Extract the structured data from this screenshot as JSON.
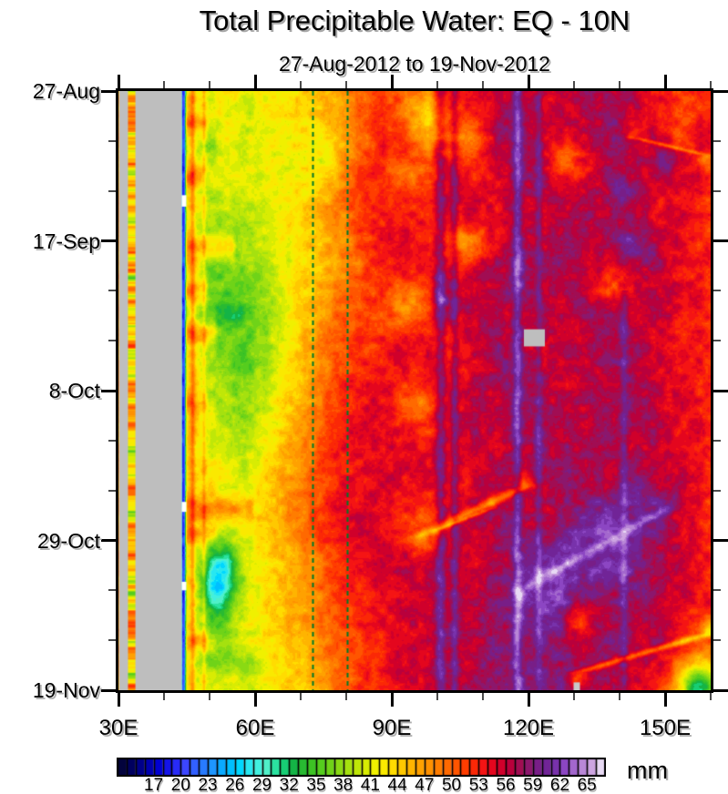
{
  "title": "Total Precipitable Water: EQ - 10N",
  "subtitle": "27-Aug-2012 to 19-Nov-2012",
  "colorbar": {
    "unit": "mm"
  },
  "chart_data": {
    "type": "heatmap",
    "title": "Total Precipitable Water: EQ - 10N",
    "subtitle": "27-Aug-2012 to 19-Nov-2012",
    "units": "mm",
    "x_axis": {
      "range_deg_east": [
        30,
        160
      ],
      "major_ticks": [
        {
          "lon": 30,
          "label": "30E"
        },
        {
          "lon": 60,
          "label": "60E"
        },
        {
          "lon": 90,
          "label": "90E"
        },
        {
          "lon": 120,
          "label": "120E"
        },
        {
          "lon": 150,
          "label": "150E"
        }
      ],
      "minor_tick_lons": [
        40,
        50,
        70,
        80,
        100,
        110,
        130,
        140,
        160
      ]
    },
    "y_axis": {
      "range_days": [
        0,
        84
      ],
      "major_ticks": [
        {
          "day": 0,
          "label": "27-Aug"
        },
        {
          "day": 21,
          "label": "17-Sep"
        },
        {
          "day": 42,
          "label": "8-Oct"
        },
        {
          "day": 63,
          "label": "29-Oct"
        },
        {
          "day": 84,
          "label": "19-Nov"
        }
      ],
      "minor_tick_days": [
        7,
        14,
        28,
        35,
        49,
        56,
        70,
        77
      ]
    },
    "colorbar": {
      "unit": "mm",
      "min": 13,
      "max": 67,
      "cell_step": 1,
      "labels": [
        17,
        20,
        23,
        26,
        29,
        32,
        35,
        38,
        41,
        44,
        47,
        50,
        53,
        56,
        59,
        62,
        65
      ]
    },
    "palette_stops": [
      [
        13,
        "#05052D"
      ],
      [
        14.5,
        "#00005F"
      ],
      [
        16,
        "#0000A0"
      ],
      [
        17.5,
        "#0000D2"
      ],
      [
        19,
        "#1E1EF5"
      ],
      [
        20.5,
        "#3C46FF"
      ],
      [
        22,
        "#2D6EFF"
      ],
      [
        23.5,
        "#1E96FF"
      ],
      [
        25,
        "#00B4FF"
      ],
      [
        26.5,
        "#00D7FF"
      ],
      [
        28,
        "#3CF0EB"
      ],
      [
        29.5,
        "#50F0C8"
      ],
      [
        31,
        "#19DC8C"
      ],
      [
        32.5,
        "#14B446"
      ],
      [
        34,
        "#32BE28"
      ],
      [
        35.5,
        "#55CD1E"
      ],
      [
        37,
        "#7DD716"
      ],
      [
        38.5,
        "#A5E10F"
      ],
      [
        40,
        "#CDEB05"
      ],
      [
        41.5,
        "#F0F000"
      ],
      [
        43,
        "#FFE600"
      ],
      [
        44.5,
        "#FFC800"
      ],
      [
        46,
        "#FFAA00"
      ],
      [
        47.5,
        "#FF9100"
      ],
      [
        49,
        "#FF7300"
      ],
      [
        50.5,
        "#FF5500"
      ],
      [
        52,
        "#FF3200"
      ],
      [
        53.5,
        "#F51414"
      ],
      [
        55,
        "#DC0023"
      ],
      [
        56.5,
        "#B9003C"
      ],
      [
        58,
        "#96145F"
      ],
      [
        59.5,
        "#781E87"
      ],
      [
        61,
        "#6E28A0"
      ],
      [
        62.5,
        "#8C46C3"
      ],
      [
        64,
        "#AF78D2"
      ],
      [
        65.5,
        "#CDA5E1"
      ],
      [
        66.2,
        "#E0CCF0"
      ],
      [
        67,
        "#F7F2FC"
      ]
    ],
    "grid": {
      "lons": [
        30,
        34,
        38,
        43,
        46,
        50,
        54,
        58,
        63,
        68,
        73,
        78,
        83,
        88,
        93,
        98,
        103,
        108,
        113,
        118,
        123,
        128,
        133,
        138,
        143,
        148,
        153,
        157,
        160
      ],
      "days": [
        0,
        6,
        12,
        18,
        24,
        30,
        36,
        42,
        48,
        54,
        60,
        66,
        72,
        78,
        84
      ],
      "values": [
        [
          47,
          46,
          46,
          45,
          44,
          41,
          43,
          41,
          42,
          43,
          45,
          47,
          50,
          52,
          52,
          50,
          53,
          54,
          56,
          57,
          55,
          56,
          57,
          57,
          56,
          54,
          52,
          52,
          53
        ],
        [
          48,
          46,
          46,
          47,
          44,
          40,
          41,
          40,
          42,
          43,
          44,
          46,
          49,
          53,
          55,
          48,
          52,
          55,
          57,
          58,
          56,
          55,
          56,
          58,
          57,
          55,
          51,
          53,
          54
        ],
        [
          47,
          46,
          46,
          46,
          45,
          41,
          42,
          41,
          41,
          42,
          44,
          47,
          51,
          54,
          53,
          51,
          54,
          53,
          55,
          57,
          58,
          56,
          55,
          57,
          56,
          55,
          53,
          54,
          53
        ],
        [
          48,
          46,
          46,
          47,
          43,
          40,
          40,
          39,
          41,
          43,
          45,
          48,
          52,
          53,
          54,
          53,
          55,
          56,
          54,
          56,
          55,
          57,
          58,
          56,
          57,
          54,
          55,
          53,
          52
        ],
        [
          47,
          46,
          46,
          46,
          44,
          39,
          38,
          39,
          40,
          42,
          44,
          47,
          50,
          54,
          55,
          54,
          53,
          55,
          57,
          55,
          56,
          58,
          56,
          55,
          56,
          57,
          54,
          53,
          53
        ],
        [
          48,
          46,
          46,
          47,
          45,
          40,
          38,
          38,
          40,
          43,
          46,
          49,
          51,
          52,
          53,
          52,
          55,
          57,
          56,
          54,
          57,
          56,
          58,
          57,
          55,
          56,
          55,
          54,
          52
        ],
        [
          47,
          46,
          46,
          46,
          44,
          40,
          39,
          38,
          41,
          44,
          47,
          50,
          52,
          53,
          55,
          54,
          52,
          55,
          58,
          57,
          55,
          57,
          56,
          58,
          57,
          55,
          53,
          54,
          53
        ],
        [
          48,
          46,
          46,
          47,
          45,
          41,
          40,
          39,
          42,
          45,
          48,
          52,
          54,
          55,
          53,
          55,
          54,
          56,
          57,
          58,
          57,
          55,
          57,
          56,
          58,
          56,
          55,
          53,
          52
        ],
        [
          47,
          46,
          46,
          46,
          44,
          42,
          41,
          40,
          43,
          46,
          49,
          53,
          55,
          54,
          55,
          53,
          55,
          57,
          55,
          57,
          58,
          57,
          56,
          58,
          56,
          57,
          54,
          55,
          53
        ],
        [
          48,
          46,
          46,
          47,
          45,
          43,
          42,
          41,
          44,
          47,
          50,
          53,
          54,
          56,
          54,
          55,
          53,
          55,
          57,
          56,
          57,
          58,
          57,
          56,
          57,
          55,
          56,
          54,
          53
        ],
        [
          47,
          46,
          46,
          46,
          44,
          44,
          43,
          42,
          45,
          48,
          51,
          54,
          56,
          54,
          52,
          50,
          55,
          57,
          58,
          57,
          55,
          57,
          58,
          59,
          57,
          58,
          55,
          54,
          52
        ],
        [
          48,
          46,
          46,
          47,
          43,
          38,
          36,
          40,
          43,
          46,
          49,
          52,
          54,
          55,
          56,
          55,
          56,
          55,
          57,
          58,
          59,
          58,
          57,
          58,
          58,
          57,
          56,
          55,
          53
        ],
        [
          47,
          46,
          46,
          46,
          44,
          40,
          39,
          41,
          44,
          46,
          48,
          51,
          53,
          54,
          55,
          56,
          55,
          57,
          58,
          59,
          58,
          59,
          58,
          57,
          58,
          56,
          55,
          54,
          53
        ],
        [
          48,
          46,
          46,
          45,
          43,
          41,
          40,
          41,
          43,
          45,
          47,
          50,
          52,
          54,
          56,
          55,
          57,
          56,
          59,
          58,
          59,
          58,
          57,
          58,
          56,
          57,
          53,
          50,
          49
        ],
        [
          47,
          46,
          46,
          44,
          42,
          40,
          41,
          40,
          42,
          44,
          46,
          49,
          52,
          53,
          55,
          56,
          55,
          57,
          58,
          59,
          58,
          59,
          58,
          57,
          55,
          52,
          48,
          44,
          43
        ]
      ]
    },
    "features": {
      "blobs": [
        [
          52,
          68.5,
          3.2,
          4.5,
          -9
        ],
        [
          51,
          71,
          4.5,
          6,
          -4
        ],
        [
          57,
          38,
          11,
          13,
          -2.5
        ],
        [
          50,
          22,
          5,
          8,
          -2
        ],
        [
          96,
          3.5,
          5,
          3.5,
          -6
        ],
        [
          107,
          6,
          4,
          3,
          -6
        ],
        [
          106,
          21,
          5,
          2.5,
          -7
        ],
        [
          93,
          30,
          4,
          4,
          -5
        ],
        [
          96,
          44,
          4,
          3,
          -5
        ],
        [
          128,
          10,
          4,
          3,
          -5
        ],
        [
          131,
          74,
          3,
          2.5,
          -7
        ],
        [
          157,
          83.5,
          4,
          3,
          -13
        ],
        [
          151,
          10,
          4,
          2.5,
          5
        ],
        [
          141,
          14,
          3,
          2,
          4
        ],
        [
          143,
          21.5,
          5,
          2.5,
          4
        ],
        [
          118,
          26,
          3,
          5,
          4
        ],
        [
          135,
          64,
          9,
          6,
          4
        ],
        [
          125,
          70,
          6,
          5,
          3.5
        ],
        [
          146,
          57,
          5,
          4,
          3
        ],
        [
          101,
          29,
          2.5,
          3,
          4
        ],
        [
          137,
          27.5,
          4,
          2,
          -5
        ],
        [
          92,
          12,
          4,
          3,
          -4
        ],
        [
          75,
          9,
          4,
          4,
          -3
        ]
      ],
      "diagonals": [
        [
          96,
          62.5,
          119,
          55.5,
          2.2,
          -7
        ],
        [
          100,
          61.5,
          112,
          58.5,
          1.1,
          -4
        ],
        [
          131,
          81.5,
          160,
          76,
          2.4,
          -7
        ],
        [
          143,
          6.5,
          159,
          9,
          1.8,
          -5
        ],
        [
          118,
          70,
          152,
          58,
          2.2,
          3
        ]
      ],
      "vlines": [
        [
          100.7,
          1.2,
          5,
          0,
          84
        ],
        [
          103.8,
          0.9,
          4,
          0,
          84
        ],
        [
          117.6,
          1.0,
          5,
          0,
          84
        ],
        [
          122.3,
          0.8,
          3,
          0,
          84
        ],
        [
          141.0,
          0.9,
          3,
          28,
          84
        ],
        [
          46.3,
          0.55,
          5,
          0,
          84
        ],
        [
          48.8,
          0.4,
          3,
          0,
          84
        ]
      ],
      "blue_line": {
        "lon": 44.25,
        "width": 0.5,
        "value": 20
      },
      "hbands": [
        [
          4.5,
          43.8,
          50,
          1.2,
          4
        ],
        [
          12,
          43.8,
          49,
          1.2,
          5
        ],
        [
          22,
          43.8,
          56,
          1.8,
          6
        ],
        [
          28,
          43.8,
          50,
          1.2,
          4
        ],
        [
          34,
          43.8,
          52,
          1.5,
          5
        ],
        [
          44,
          43.8,
          50,
          1.2,
          4
        ],
        [
          58.5,
          43.8,
          60,
          1.5,
          5
        ],
        [
          62,
          43.8,
          52,
          1.2,
          4
        ],
        [
          77,
          43.8,
          50,
          1.0,
          4
        ],
        [
          8,
          44,
          52,
          1.5,
          -3
        ],
        [
          31,
          44,
          58,
          2,
          -3
        ],
        [
          80,
          45,
          62,
          1.5,
          -3
        ]
      ]
    },
    "missing_data": {
      "color": "#BEBEBE",
      "bands_full_height": [
        {
          "lon0": 30.12,
          "lon1": 32.1
        },
        {
          "lon0": 33.72,
          "lon1": 43.92
        }
      ],
      "patches": [
        {
          "lon0": 119.0,
          "lon1": 123.6,
          "day0": 33.4,
          "day1": 35.8,
          "color": "#BEBEBE"
        },
        {
          "lon0": 129.9,
          "lon1": 131.3,
          "day0": 82.9,
          "day1": 84,
          "color": "#C8C8C8"
        }
      ],
      "white_notches": [
        {
          "lon0": 43.9,
          "lon1": 44.9,
          "day0": 14.6,
          "day1": 16.2
        },
        {
          "lon0": 43.9,
          "lon1": 44.9,
          "day0": 57.6,
          "day1": 59.0
        },
        {
          "lon0": 43.9,
          "lon1": 44.9,
          "day0": 68.8,
          "day1": 70.0
        }
      ]
    },
    "dashed_reference_lines": {
      "color": "#007828",
      "lons": [
        72.6,
        80.2
      ]
    },
    "west_strip": {
      "lon0": 32.05,
      "lon1": 33.75,
      "base_value": 45
    }
  }
}
